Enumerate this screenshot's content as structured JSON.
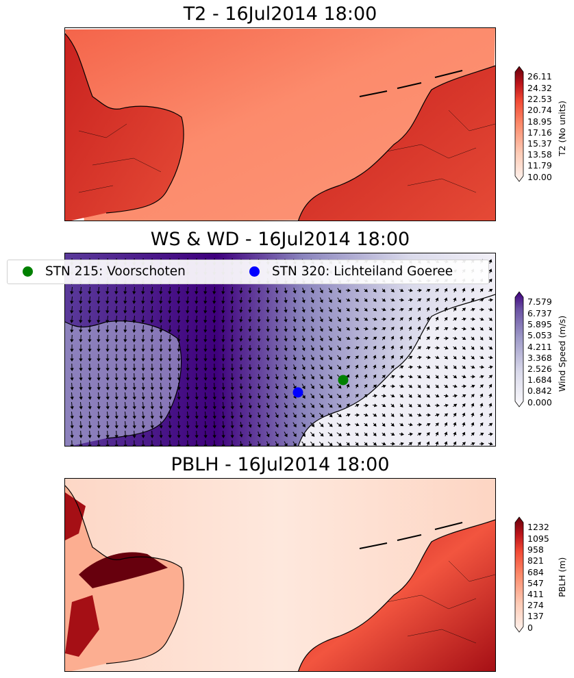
{
  "panels": [
    {
      "title": "T2 - 16Jul2014 18:00",
      "colorbar_label": "T2 (No units)",
      "ticks": [
        "26.11",
        "24.32",
        "22.53",
        "20.74",
        "18.95",
        "17.16",
        "15.37",
        "13.58",
        "11.79",
        "10.00"
      ],
      "colors": [
        "#fff5f0",
        "#fdcab5",
        "#fc8a6a",
        "#f24a35",
        "#bc141a",
        "#67000d"
      ],
      "sea_color": "#fc8b6c",
      "land_color": "#d9382d"
    },
    {
      "title": "WS & WD - 16Jul2014 18:00",
      "colorbar_label": "Wind Speed (m/s)",
      "ticks": [
        "7.579",
        "6.737",
        "5.895",
        "5.053",
        "4.211",
        "3.368",
        "2.526",
        "1.684",
        "0.842",
        "0.000"
      ],
      "colors": [
        "#fcfbfd",
        "#dadaeb",
        "#9e9ac8",
        "#6a51a3",
        "#3f007d"
      ],
      "sea_color": "#4a1f8a",
      "land_color": "#e6e5f1"
    },
    {
      "title": "PBLH - 16Jul2014 18:00",
      "colorbar_label": "PBLH (m)",
      "ticks": [
        "1232",
        "1095",
        "958",
        "821",
        "684",
        "547",
        "411",
        "274",
        "137",
        "0"
      ],
      "colors": [
        "#fff5f0",
        "#fdcab5",
        "#fc8a6a",
        "#f24a35",
        "#bc141a",
        "#67000d"
      ],
      "sea_color": "#fee8dd",
      "land_color": "#ef4433"
    }
  ],
  "legend": [
    {
      "label": "STN 215: Voorschoten",
      "color": "#008000"
    },
    {
      "label": "STN 320: Lichteiland Goeree",
      "color": "#0000ff"
    }
  ],
  "stations": [
    {
      "id": "215",
      "name": "Voorschoten",
      "color": "#008000"
    },
    {
      "id": "320",
      "name": "Lichteiland Goeree",
      "color": "#0000ff"
    }
  ]
}
